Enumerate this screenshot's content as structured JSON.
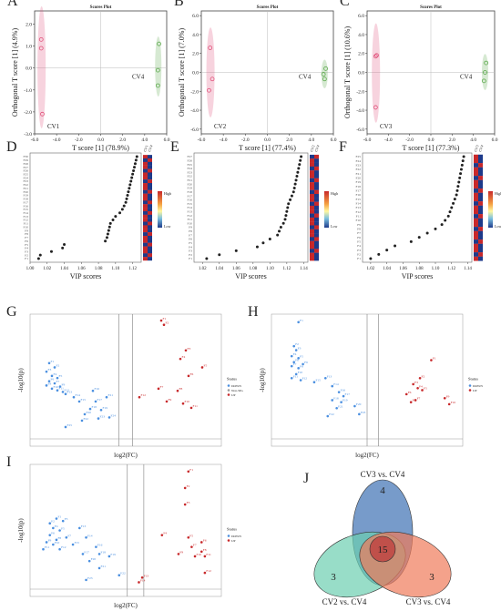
{
  "panels": {
    "A": {
      "letter": "A",
      "title": "Scores Plot",
      "xlabel": "T score [1] (78.9%)",
      "ylabel": "Orthogonal T score [1] (4.9%)",
      "xticks": [
        "-6.0",
        "-4.0",
        "-2.0",
        "0.0",
        "2.0",
        "4.0",
        "6.0"
      ],
      "yticks": [
        "2.0",
        "1.0",
        "0.0",
        "-1.0",
        "-2.0",
        "-3.0"
      ],
      "group1": "CV1",
      "group2": "CV4"
    },
    "B": {
      "letter": "B",
      "title": "Scores Plot",
      "xlabel": "T score [1] (77.4%)",
      "ylabel": "Orthogonal T score [1] (7.0%)",
      "xticks": [
        "-6.0",
        "-4.0",
        "-2.0",
        "0.0",
        "2.0",
        "4.0",
        "6.0"
      ],
      "yticks": [
        "6.0",
        "4.0",
        "2.0",
        "0.0",
        "-2.0",
        "-4.0",
        "-6.0"
      ],
      "group1": "CV2",
      "group2": "CV4"
    },
    "C": {
      "letter": "C",
      "title": "Scores Plot",
      "xlabel": "T score [1] (77.3%)",
      "ylabel": "Orthogonal T score [1] (10.6%)",
      "xticks": [
        "-6.0",
        "-4.0",
        "-2.0",
        "0.0",
        "2.0",
        "4.0",
        "6.0"
      ],
      "yticks": [
        "6.0",
        "4.0",
        "2.0",
        "0.0",
        "-2.0",
        "-4.0",
        "-6.0"
      ],
      "group1": "CV3",
      "group2": "CV4"
    },
    "D": {
      "letter": "D",
      "xlabel": "VIP scores",
      "xticks": [
        "1.00",
        "1.02",
        "1.04",
        "1.06",
        "1.08",
        "1.10",
        "1.12"
      ],
      "col1": "CV1",
      "col2": "CV4",
      "legend_high": "High",
      "legend_low": "Low"
    },
    "E": {
      "letter": "E",
      "xlabel": "VIP scores",
      "xticks": [
        "1.02",
        "1.04",
        "1.06",
        "1.08",
        "1.10",
        "1.12",
        "1.14"
      ],
      "col1": "CV2",
      "col2": "CV4",
      "legend_high": "High",
      "legend_low": "Low"
    },
    "F": {
      "letter": "F",
      "xlabel": "VIP scores",
      "xticks": [
        "1.02",
        "1.04",
        "1.06",
        "1.08",
        "1.10",
        "1.12",
        "1.14"
      ],
      "col1": "CV3",
      "col2": "CV4",
      "legend_high": "High",
      "legend_low": "Low"
    },
    "G": {
      "letter": "G",
      "xlabel": "log2(FC)",
      "ylabel": "-log10(p)",
      "status_title": "Status",
      "status_items": [
        "DOWN",
        "Non-SIG",
        "UP"
      ]
    },
    "H": {
      "letter": "H",
      "xlabel": "log2(FC)",
      "ylabel": "-log10(p)",
      "status_title": "Status",
      "status_items": [
        "DOWN",
        "UP"
      ]
    },
    "I": {
      "letter": "I",
      "xlabel": "log2(FC)",
      "ylabel": "-log10(p)",
      "status_title": "Status",
      "status_items": [
        "DOWN",
        "UP"
      ]
    },
    "J": {
      "letter": "J",
      "set_top": "CV3 vs. CV4",
      "set_left": "CV2 vs. CV4",
      "set_right": "CV3 vs. CV4",
      "n_top": "4",
      "n_left": "3",
      "n_right": "3",
      "n_center": "15"
    }
  },
  "colors": {
    "group1": "#e0507a",
    "group2": "#5aa84a",
    "down": "#4a8fe0",
    "up": "#c8282a",
    "nonsig": "#999999",
    "venn_top": "#4a7ab8",
    "venn_left": "#6ccfb0",
    "venn_right": "#f07a5a",
    "venn_center": "#c0504a",
    "vip_dot": "#222222"
  },
  "chart_data": [
    {
      "panel": "A",
      "type": "scatter",
      "series": [
        {
          "name": "CV1",
          "points": [
            [
              -5.4,
              1.3
            ],
            [
              -5.4,
              0.9
            ],
            [
              -5.3,
              -2.1
            ]
          ]
        },
        {
          "name": "CV4",
          "points": [
            [
              5.3,
              1.1
            ],
            [
              5.2,
              -0.1
            ],
            [
              5.2,
              -0.8
            ]
          ]
        }
      ],
      "xlim": [
        -6,
        6
      ],
      "ylim": [
        -3,
        2.6
      ]
    },
    {
      "panel": "B",
      "type": "scatter",
      "series": [
        {
          "name": "CV2",
          "points": [
            [
              -5.2,
              2.6
            ],
            [
              -5.0,
              -0.7
            ],
            [
              -5.3,
              -1.9
            ]
          ]
        },
        {
          "name": "CV4",
          "points": [
            [
              5.3,
              0.4
            ],
            [
              5.1,
              -0.2
            ],
            [
              5.2,
              -0.7
            ]
          ]
        }
      ],
      "xlim": [
        -6,
        6
      ],
      "ylim": [
        -6.5,
        6.5
      ]
    },
    {
      "panel": "C",
      "type": "scatter",
      "series": [
        {
          "name": "CV3",
          "points": [
            [
              -5.1,
              1.8
            ],
            [
              -5.2,
              1.7
            ],
            [
              -5.2,
              -3.7
            ]
          ]
        },
        {
          "name": "CV4",
          "points": [
            [
              5.2,
              1.0
            ],
            [
              5.1,
              0.0
            ],
            [
              5.0,
              -0.9
            ]
          ]
        }
      ],
      "xlim": [
        -6,
        6
      ],
      "ylim": [
        -6.5,
        6.5
      ]
    },
    {
      "panel": "D",
      "type": "scatter",
      "values": [
        1.125,
        1.124,
        1.123,
        1.122,
        1.121,
        1.12,
        1.119,
        1.118,
        1.117,
        1.116,
        1.115,
        1.114,
        1.113,
        1.112,
        1.11,
        1.108,
        1.105,
        1.1,
        1.097,
        1.094,
        1.093,
        1.092,
        1.091,
        1.09,
        1.088,
        1.04,
        1.038,
        1.025,
        1.012,
        1.01
      ],
      "xlim": [
        1.0,
        1.13
      ]
    },
    {
      "panel": "E",
      "type": "scatter",
      "values": [
        1.137,
        1.136,
        1.135,
        1.134,
        1.133,
        1.132,
        1.131,
        1.13,
        1.129,
        1.128,
        1.126,
        1.124,
        1.122,
        1.121,
        1.12,
        1.119,
        1.118,
        1.116,
        1.113,
        1.111,
        1.109,
        1.1,
        1.092,
        1.085,
        1.06,
        1.04,
        1.025
      ],
      "xlim": [
        1.01,
        1.145
      ]
    },
    {
      "panel": "F",
      "type": "scatter",
      "values": [
        1.135,
        1.134,
        1.133,
        1.132,
        1.131,
        1.13,
        1.129,
        1.128,
        1.127,
        1.126,
        1.124,
        1.122,
        1.12,
        1.118,
        1.116,
        1.112,
        1.108,
        1.1,
        1.09,
        1.08,
        1.07,
        1.05,
        1.04,
        1.03,
        1.02
      ],
      "xlim": [
        1.01,
        1.145
      ]
    },
    {
      "panel": "G",
      "type": "scatter",
      "series": [
        {
          "name": "DOWN",
          "points": [
            [
              -2.8,
              3.9
            ],
            [
              -2.6,
              3.7
            ],
            [
              -2.9,
              3.5
            ],
            [
              -2.7,
              3.3
            ],
            [
              -2.5,
              3.2
            ],
            [
              -2.8,
              3.05
            ],
            [
              -2.6,
              2.95
            ],
            [
              -2.9,
              2.85
            ],
            [
              -2.4,
              2.8
            ],
            [
              -2.7,
              2.7
            ],
            [
              -2.5,
              2.62
            ],
            [
              -2.3,
              2.55
            ],
            [
              -2.2,
              2.45
            ],
            [
              -1.9,
              2.3
            ],
            [
              -1.7,
              2.1
            ],
            [
              -1.2,
              2.6
            ],
            [
              -1.1,
              2.1
            ],
            [
              -1.3,
              1.75
            ],
            [
              -0.9,
              1.7
            ],
            [
              -1.5,
              1.5
            ],
            [
              -0.7,
              2.3
            ],
            [
              -1.6,
              1.2
            ],
            [
              -1.0,
              1.3
            ],
            [
              -0.6,
              1.35
            ],
            [
              -2.2,
              0.9
            ]
          ]
        },
        {
          "name": "UP",
          "points": [
            [
              1.3,
              5.9
            ],
            [
              1.4,
              5.7
            ],
            [
              2.2,
              4.5
            ],
            [
              2.0,
              4.1
            ],
            [
              2.8,
              3.7
            ],
            [
              2.3,
              3.3
            ],
            [
              1.2,
              2.7
            ],
            [
              1.9,
              2.6
            ],
            [
              1.5,
              2.1
            ],
            [
              2.1,
              2.0
            ],
            [
              2.4,
              1.8
            ],
            [
              0.5,
              2.3
            ]
          ]
        }
      ],
      "xlim": [
        -3.5,
        3.5
      ],
      "ylim": [
        0,
        6.2
      ]
    },
    {
      "panel": "H",
      "type": "scatter",
      "series": [
        {
          "name": "DOWN",
          "points": [
            [
              -3.3,
              6.2
            ],
            [
              -3.5,
              5.0
            ],
            [
              -3.4,
              4.8
            ],
            [
              -3.6,
              4.5
            ],
            [
              -3.3,
              4.4
            ],
            [
              -3.5,
              4.2
            ],
            [
              -3.6,
              4.0
            ],
            [
              -3.3,
              3.9
            ],
            [
              -3.1,
              4.1
            ],
            [
              -3.4,
              3.6
            ],
            [
              -3.6,
              3.4
            ],
            [
              -3.2,
              3.3
            ],
            [
              -2.1,
              3.4
            ],
            [
              -1.8,
              3.0
            ],
            [
              -2.6,
              3.2
            ],
            [
              -1.5,
              2.7
            ],
            [
              -1.3,
              2.5
            ],
            [
              -1.8,
              2.3
            ],
            [
              -1.4,
              2.2
            ],
            [
              -0.8,
              2.0
            ],
            [
              -1.6,
              1.9
            ],
            [
              -2.0,
              1.5
            ],
            [
              -0.6,
              1.6
            ]
          ]
        },
        {
          "name": "UP",
          "points": [
            [
              2.6,
              4.3
            ],
            [
              2.1,
              3.4
            ],
            [
              1.8,
              3.1
            ],
            [
              2.0,
              2.9
            ],
            [
              2.2,
              2.8
            ],
            [
              1.5,
              2.6
            ],
            [
              1.9,
              2.3
            ],
            [
              1.7,
              2.2
            ],
            [
              3.2,
              2.4
            ],
            [
              3.4,
              2.1
            ]
          ]
        }
      ],
      "xlim": [
        -4.5,
        4.0
      ],
      "ylim": [
        0,
        6.6
      ]
    },
    {
      "panel": "I",
      "type": "scatter",
      "series": [
        {
          "name": "DOWN",
          "points": [
            [
              -2.4,
              3.3
            ],
            [
              -2.6,
              3.1
            ],
            [
              -2.2,
              3.2
            ],
            [
              -2.5,
              2.9
            ],
            [
              -2.3,
              2.8
            ],
            [
              -2.6,
              2.6
            ],
            [
              -2.1,
              2.5
            ],
            [
              -2.4,
              2.4
            ],
            [
              -2.7,
              2.3
            ],
            [
              -2.5,
              2.2
            ],
            [
              -2.8,
              2.0
            ],
            [
              -2.3,
              2.0
            ],
            [
              -1.7,
              2.9
            ],
            [
              -1.5,
              2.5
            ],
            [
              -1.9,
              2.2
            ],
            [
              -1.2,
              2.1
            ],
            [
              -1.6,
              1.8
            ],
            [
              -1.1,
              1.8
            ],
            [
              -0.8,
              1.7
            ],
            [
              -1.4,
              1.5
            ],
            [
              -1.1,
              1.2
            ],
            [
              -0.5,
              0.9
            ],
            [
              -1.5,
              0.7
            ]
          ]
        },
        {
          "name": "UP",
          "points": [
            [
              1.6,
              5.3
            ],
            [
              1.5,
              4.6
            ],
            [
              1.5,
              3.9
            ],
            [
              0.8,
              2.6
            ],
            [
              1.6,
              2.5
            ],
            [
              2.0,
              2.3
            ],
            [
              1.7,
              2.1
            ],
            [
              2.0,
              1.9
            ],
            [
              1.3,
              1.8
            ],
            [
              1.8,
              1.7
            ],
            [
              2.1,
              1.7
            ],
            [
              2.1,
              1.0
            ],
            [
              0.2,
              0.8
            ],
            [
              0.1,
              0.6
            ]
          ]
        }
      ],
      "xlim": [
        -3.2,
        2.6
      ],
      "ylim": [
        0,
        5.6
      ]
    },
    {
      "panel": "J",
      "type": "table",
      "sets": [
        "CV3 vs. CV4",
        "CV2 vs. CV4",
        "CV3 vs. CV4"
      ],
      "values": {
        "top_only": 4,
        "left_only": 3,
        "right_only": 3,
        "intersection": 15
      }
    }
  ]
}
